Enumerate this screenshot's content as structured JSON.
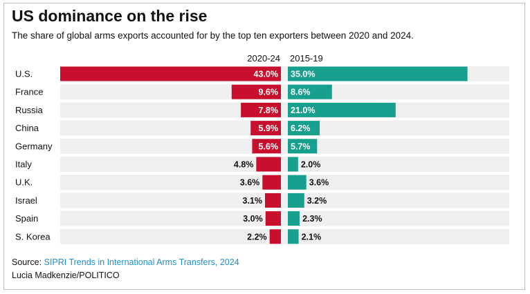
{
  "title": "US dominance on the rise",
  "subtitle": "The share of global arms exports accounted for by the top ten exporters between 2020 and 2024.",
  "source": {
    "prefix": "Source: ",
    "link_text": "SIPRI Trends in International Arms Transfers, 2024"
  },
  "credit": "Lucia Madkenzie/POLITICO",
  "colors": {
    "series_2020_24": "#c8102e",
    "series_2015_19": "#17a08d",
    "row_background": "#efefef",
    "link": "#1f8fcf"
  },
  "chart_data": {
    "type": "bar",
    "orientation": "horizontal-back-to-back",
    "categories": [
      "U.S.",
      "France",
      "Russia",
      "China",
      "Germany",
      "Italy",
      "U.K.",
      "Israel",
      "Spain",
      "S. Korea"
    ],
    "series": [
      {
        "name": "2020-24",
        "values": [
          43.0,
          9.6,
          7.8,
          5.9,
          5.6,
          4.8,
          3.6,
          3.1,
          3.0,
          2.2
        ],
        "labels": [
          "43.0%",
          "9.6%",
          "7.8%",
          "5.9%",
          "5.6%",
          "4.8%",
          "3.6%",
          "3.1%",
          "3.0%",
          "2.2%"
        ]
      },
      {
        "name": "2015-19",
        "values": [
          35.0,
          8.6,
          21.0,
          6.2,
          5.7,
          2.0,
          3.6,
          3.2,
          2.3,
          2.1
        ],
        "labels": [
          "35.0%",
          "8.6%",
          "21.0%",
          "6.2%",
          "5.7%",
          "2.0%",
          "3.6%",
          "3.2%",
          "2.3%",
          "2.1%"
        ]
      }
    ],
    "unit": "%"
  }
}
